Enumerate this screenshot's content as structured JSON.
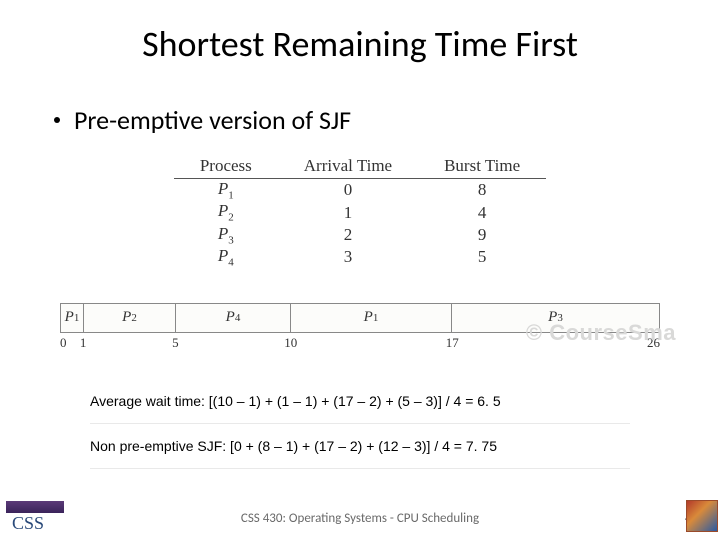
{
  "title": "Shortest Remaining Time First",
  "bullet": "Pre-emptive version of SJF",
  "table": {
    "headers": [
      "Process",
      "Arrival Time",
      "Burst Time"
    ],
    "rows": [
      {
        "proc": "P",
        "sub": "1",
        "arrival": "0",
        "burst": "8"
      },
      {
        "proc": "P",
        "sub": "2",
        "arrival": "1",
        "burst": "4"
      },
      {
        "proc": "P",
        "sub": "3",
        "arrival": "2",
        "burst": "9"
      },
      {
        "proc": "P",
        "sub": "4",
        "arrival": "3",
        "burst": "5"
      }
    ]
  },
  "gantt": {
    "total": 26,
    "segments": [
      {
        "label": "P",
        "sub": "1",
        "start": 0,
        "end": 1
      },
      {
        "label": "P",
        "sub": "2",
        "start": 1,
        "end": 5
      },
      {
        "label": "P",
        "sub": "4",
        "start": 5,
        "end": 10
      },
      {
        "label": "P",
        "sub": "1",
        "start": 10,
        "end": 17
      },
      {
        "label": "P",
        "sub": "3",
        "start": 17,
        "end": 26
      }
    ],
    "ticks": [
      "0",
      "1",
      "5",
      "10",
      "17",
      "26"
    ]
  },
  "watermark": "© CourseSma",
  "calc1": "Average wait time: [(10 – 1) + (1 – 1) + (17 – 2) + (5 – 3)] / 4 = 6. 5",
  "calc2": "Non pre-emptive SJF: [0 + (8 – 1) + (17 – 2) + (12 – 3)] / 4 = 7. 75",
  "footer": "CSS 430: Operating Systems - CPU Scheduling",
  "page": "45",
  "logo_text": "CSS"
}
